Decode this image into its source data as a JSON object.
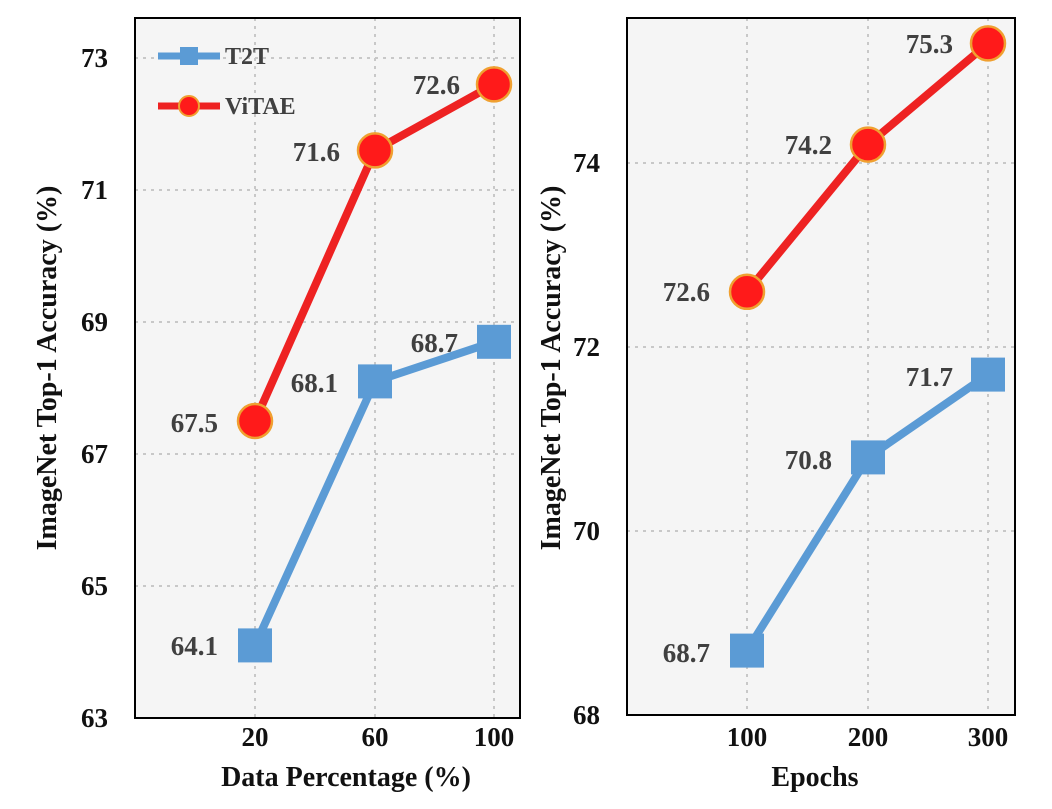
{
  "chart_data": [
    {
      "type": "line",
      "categories": [
        "20",
        "60",
        "100"
      ],
      "x": [
        20,
        60,
        100
      ],
      "series": [
        {
          "name": "T2T",
          "values": [
            64.1,
            68.1,
            68.7
          ],
          "labels": [
            "64.1",
            "68.1",
            "68.7"
          ],
          "color": "#5b9bd5",
          "marker": "square"
        },
        {
          "name": "ViTAE",
          "values": [
            67.5,
            71.6,
            72.6
          ],
          "labels": [
            "67.5",
            "71.6",
            "72.6"
          ],
          "color": "#ee2222",
          "marker": "circle",
          "marker_fill": "#ff1a1a",
          "marker_edge": "#f0a030"
        }
      ],
      "xlabel": "Data Percentage (%)",
      "ylabel": "ImageNet Top-1 Accuracy (%)",
      "yticks": [
        "63",
        "65",
        "67",
        "69",
        "71",
        "73"
      ],
      "ylim": [
        63,
        73.5
      ],
      "grid": true,
      "legend": "top-left"
    },
    {
      "type": "line",
      "categories": [
        "100",
        "200",
        "300"
      ],
      "x": [
        100,
        200,
        300
      ],
      "series": [
        {
          "name": "T2T",
          "values": [
            68.7,
            70.8,
            71.7
          ],
          "labels": [
            "68.7",
            "70.8",
            "71.7"
          ],
          "color": "#5b9bd5",
          "marker": "square"
        },
        {
          "name": "ViTAE",
          "values": [
            72.6,
            74.2,
            75.3
          ],
          "labels": [
            "72.6",
            "74.2",
            "75.3"
          ],
          "color": "#ee2222",
          "marker": "circle",
          "marker_fill": "#ff1a1a",
          "marker_edge": "#f0a030"
        }
      ],
      "xlabel": "Epochs",
      "ylabel": "ImageNet Top-1 Accuracy (%)",
      "yticks": [
        "68",
        "70",
        "72",
        "74"
      ],
      "ylim": [
        68,
        75.5
      ],
      "grid": true
    }
  ]
}
